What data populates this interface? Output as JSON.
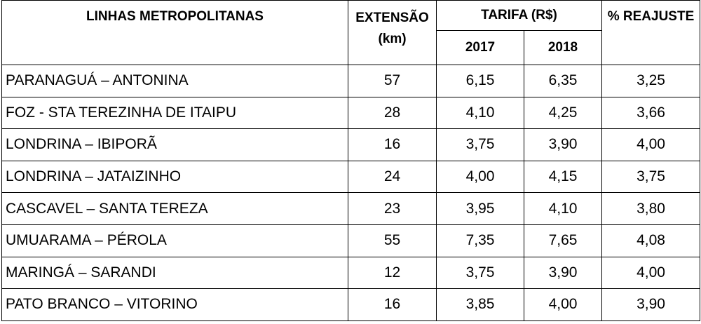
{
  "header": {
    "lines": "LINHAS METROPOLITANAS",
    "extension": "EXTENSÃO",
    "extension_unit": "(km)",
    "fare": "TARIFA (R$)",
    "year_2017": "2017",
    "year_2018": "2018",
    "adjustment": "% REAJUSTE"
  },
  "rows": [
    {
      "line": "PARANAGUÁ – ANTONINA",
      "ext": "57",
      "f2017": "6,15",
      "f2018": "6,35",
      "adj": "3,25"
    },
    {
      "line": "FOZ - STA TEREZINHA DE ITAIPU",
      "ext": "28",
      "f2017": "4,10",
      "f2018": "4,25",
      "adj": "3,66"
    },
    {
      "line": "LONDRINA – IBIPORÃ",
      "ext": "16",
      "f2017": "3,75",
      "f2018": "3,90",
      "adj": "4,00"
    },
    {
      "line": "LONDRINA – JATAIZINHO",
      "ext": "24",
      "f2017": "4,00",
      "f2018": "4,15",
      "adj": "3,75"
    },
    {
      "line": "CASCAVEL – SANTA TEREZA",
      "ext": "23",
      "f2017": "3,95",
      "f2018": "4,10",
      "adj": "3,80"
    },
    {
      "line": "UMUARAMA – PÉROLA",
      "ext": "55",
      "f2017": "7,35",
      "f2018": "7,65",
      "adj": "4,08"
    },
    {
      "line": "MARINGÁ – SARANDI",
      "ext": "12",
      "f2017": "3,75",
      "f2018": "3,90",
      "adj": "4,00"
    },
    {
      "line": "PATO BRANCO – VITORINO",
      "ext": "16",
      "f2017": "3,85",
      "f2018": "4,00",
      "adj": "3,90"
    }
  ]
}
